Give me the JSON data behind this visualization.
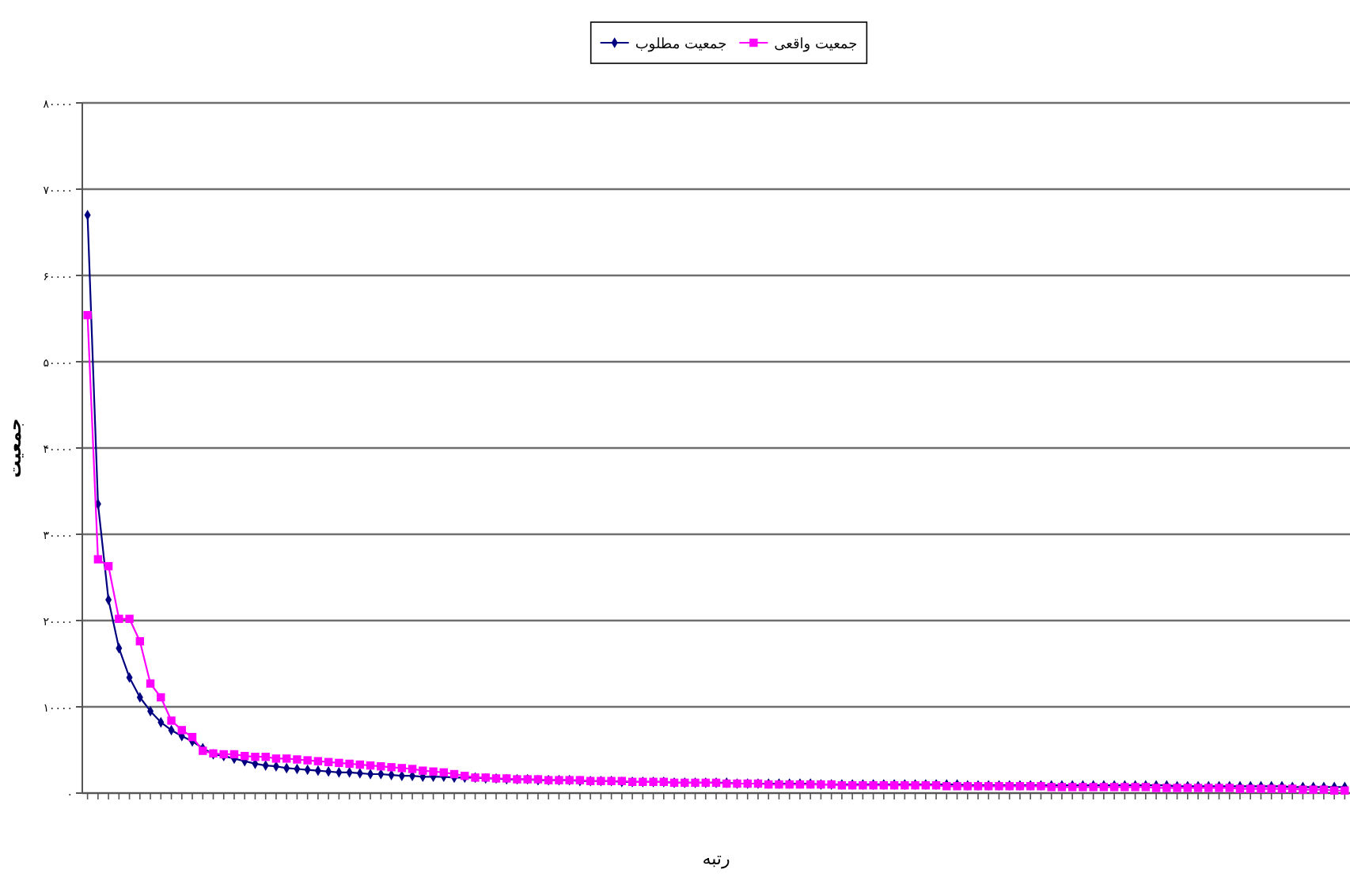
{
  "chart_data": {
    "type": "line",
    "xlabel": "رتبه",
    "ylabel": "جمعیت",
    "categories": [
      null,
      null,
      null,
      null,
      null,
      null,
      null,
      null,
      null,
      null,
      null,
      null,
      null,
      null,
      null,
      null,
      null,
      null,
      null,
      null,
      null,
      null,
      null,
      null,
      null,
      null,
      null,
      null,
      null,
      null,
      null,
      null,
      null,
      null,
      null,
      null,
      null,
      null,
      null,
      null,
      null,
      null,
      null,
      null,
      null,
      null,
      null,
      null,
      null,
      null,
      null,
      null,
      null,
      null,
      null,
      null,
      null,
      null,
      null,
      null,
      null,
      null,
      null,
      null,
      null,
      null,
      null,
      null,
      null,
      null,
      null,
      null,
      null,
      null,
      null,
      null,
      null,
      null,
      null,
      null,
      null,
      null,
      null,
      null,
      null,
      null,
      null,
      null,
      null,
      null,
      null,
      null,
      null,
      null,
      null,
      null,
      null,
      null,
      null,
      null,
      null,
      null,
      null,
      null,
      null,
      null,
      null,
      null,
      null,
      null,
      null,
      null,
      null,
      null,
      null,
      null,
      null,
      null,
      null,
      null,
      null
    ],
    "series": [
      {
        "name": "جمعیت مطلوب",
        "color": "#000080",
        "marker": "diamond",
        "values": [
          67000,
          33500,
          22400,
          16800,
          13400,
          11100,
          9500,
          8200,
          7300,
          6600,
          6000,
          5200,
          4500,
          4300,
          4000,
          3700,
          3400,
          3200,
          3100,
          2900,
          2800,
          2700,
          2600,
          2500,
          2400,
          2400,
          2300,
          2200,
          2200,
          2100,
          2000,
          2000,
          1900,
          1900,
          1900,
          1800,
          1800,
          1800,
          1700,
          1700,
          1600,
          1600,
          1600,
          1500,
          1500,
          1500,
          1500,
          1400,
          1400,
          1400,
          1400,
          1300,
          1300,
          1300,
          1300,
          1300,
          1200,
          1200,
          1200,
          1200,
          1200,
          1200,
          1100,
          1100,
          1100,
          1100,
          1100,
          1100,
          1100,
          1100,
          1000,
          1000,
          1000,
          1000,
          1000,
          1000,
          1000,
          1000,
          1000,
          1000,
          1000,
          1000,
          1000,
          1000,
          900,
          900,
          900,
          900,
          900,
          900,
          900,
          900,
          900,
          900,
          900,
          900,
          900,
          900,
          900,
          900,
          900,
          900,
          900,
          900,
          800,
          800,
          800,
          800,
          800,
          800,
          800,
          800,
          800,
          800,
          800,
          700,
          700,
          700,
          700,
          700,
          700
        ]
      },
      {
        "name": "جمعیت واقعی",
        "color": "#ff00ff",
        "marker": "square",
        "values": [
          55400,
          27100,
          26300,
          20200,
          20200,
          17600,
          12700,
          11100,
          8400,
          7300,
          6500,
          4900,
          4600,
          4500,
          4500,
          4300,
          4200,
          4200,
          4000,
          4000,
          3900,
          3800,
          3700,
          3600,
          3500,
          3400,
          3300,
          3200,
          3100,
          3000,
          2900,
          2800,
          2600,
          2500,
          2400,
          2200,
          2000,
          1800,
          1800,
          1700,
          1700,
          1600,
          1600,
          1600,
          1500,
          1500,
          1500,
          1500,
          1400,
          1400,
          1400,
          1400,
          1300,
          1300,
          1300,
          1300,
          1200,
          1200,
          1200,
          1200,
          1200,
          1100,
          1100,
          1100,
          1100,
          1000,
          1000,
          1000,
          1000,
          1000,
          1000,
          1000,
          900,
          900,
          900,
          900,
          900,
          900,
          900,
          900,
          900,
          900,
          800,
          800,
          800,
          800,
          800,
          800,
          800,
          800,
          800,
          800,
          700,
          700,
          700,
          700,
          700,
          700,
          700,
          700,
          700,
          700,
          600,
          600,
          600,
          600,
          600,
          600,
          600,
          600,
          500,
          500,
          500,
          500,
          500,
          500,
          400,
          400,
          400,
          300,
          300
        ]
      }
    ],
    "ylim": [
      0,
      80000
    ],
    "yticks": [
      {
        "value": 0,
        "label": "۰"
      },
      {
        "value": 10000,
        "label": "۱۰۰۰۰"
      },
      {
        "value": 20000,
        "label": "۲۰۰۰۰"
      },
      {
        "value": 30000,
        "label": "۳۰۰۰۰"
      },
      {
        "value": 40000,
        "label": "۴۰۰۰۰"
      },
      {
        "value": 50000,
        "label": "۵۰۰۰۰"
      },
      {
        "value": 60000,
        "label": "۶۰۰۰۰"
      },
      {
        "value": 70000,
        "label": "۷۰۰۰۰"
      },
      {
        "value": 80000,
        "label": "۸۰۰۰۰"
      }
    ],
    "grid": "y",
    "legend": "top",
    "tick_labels": "y"
  }
}
